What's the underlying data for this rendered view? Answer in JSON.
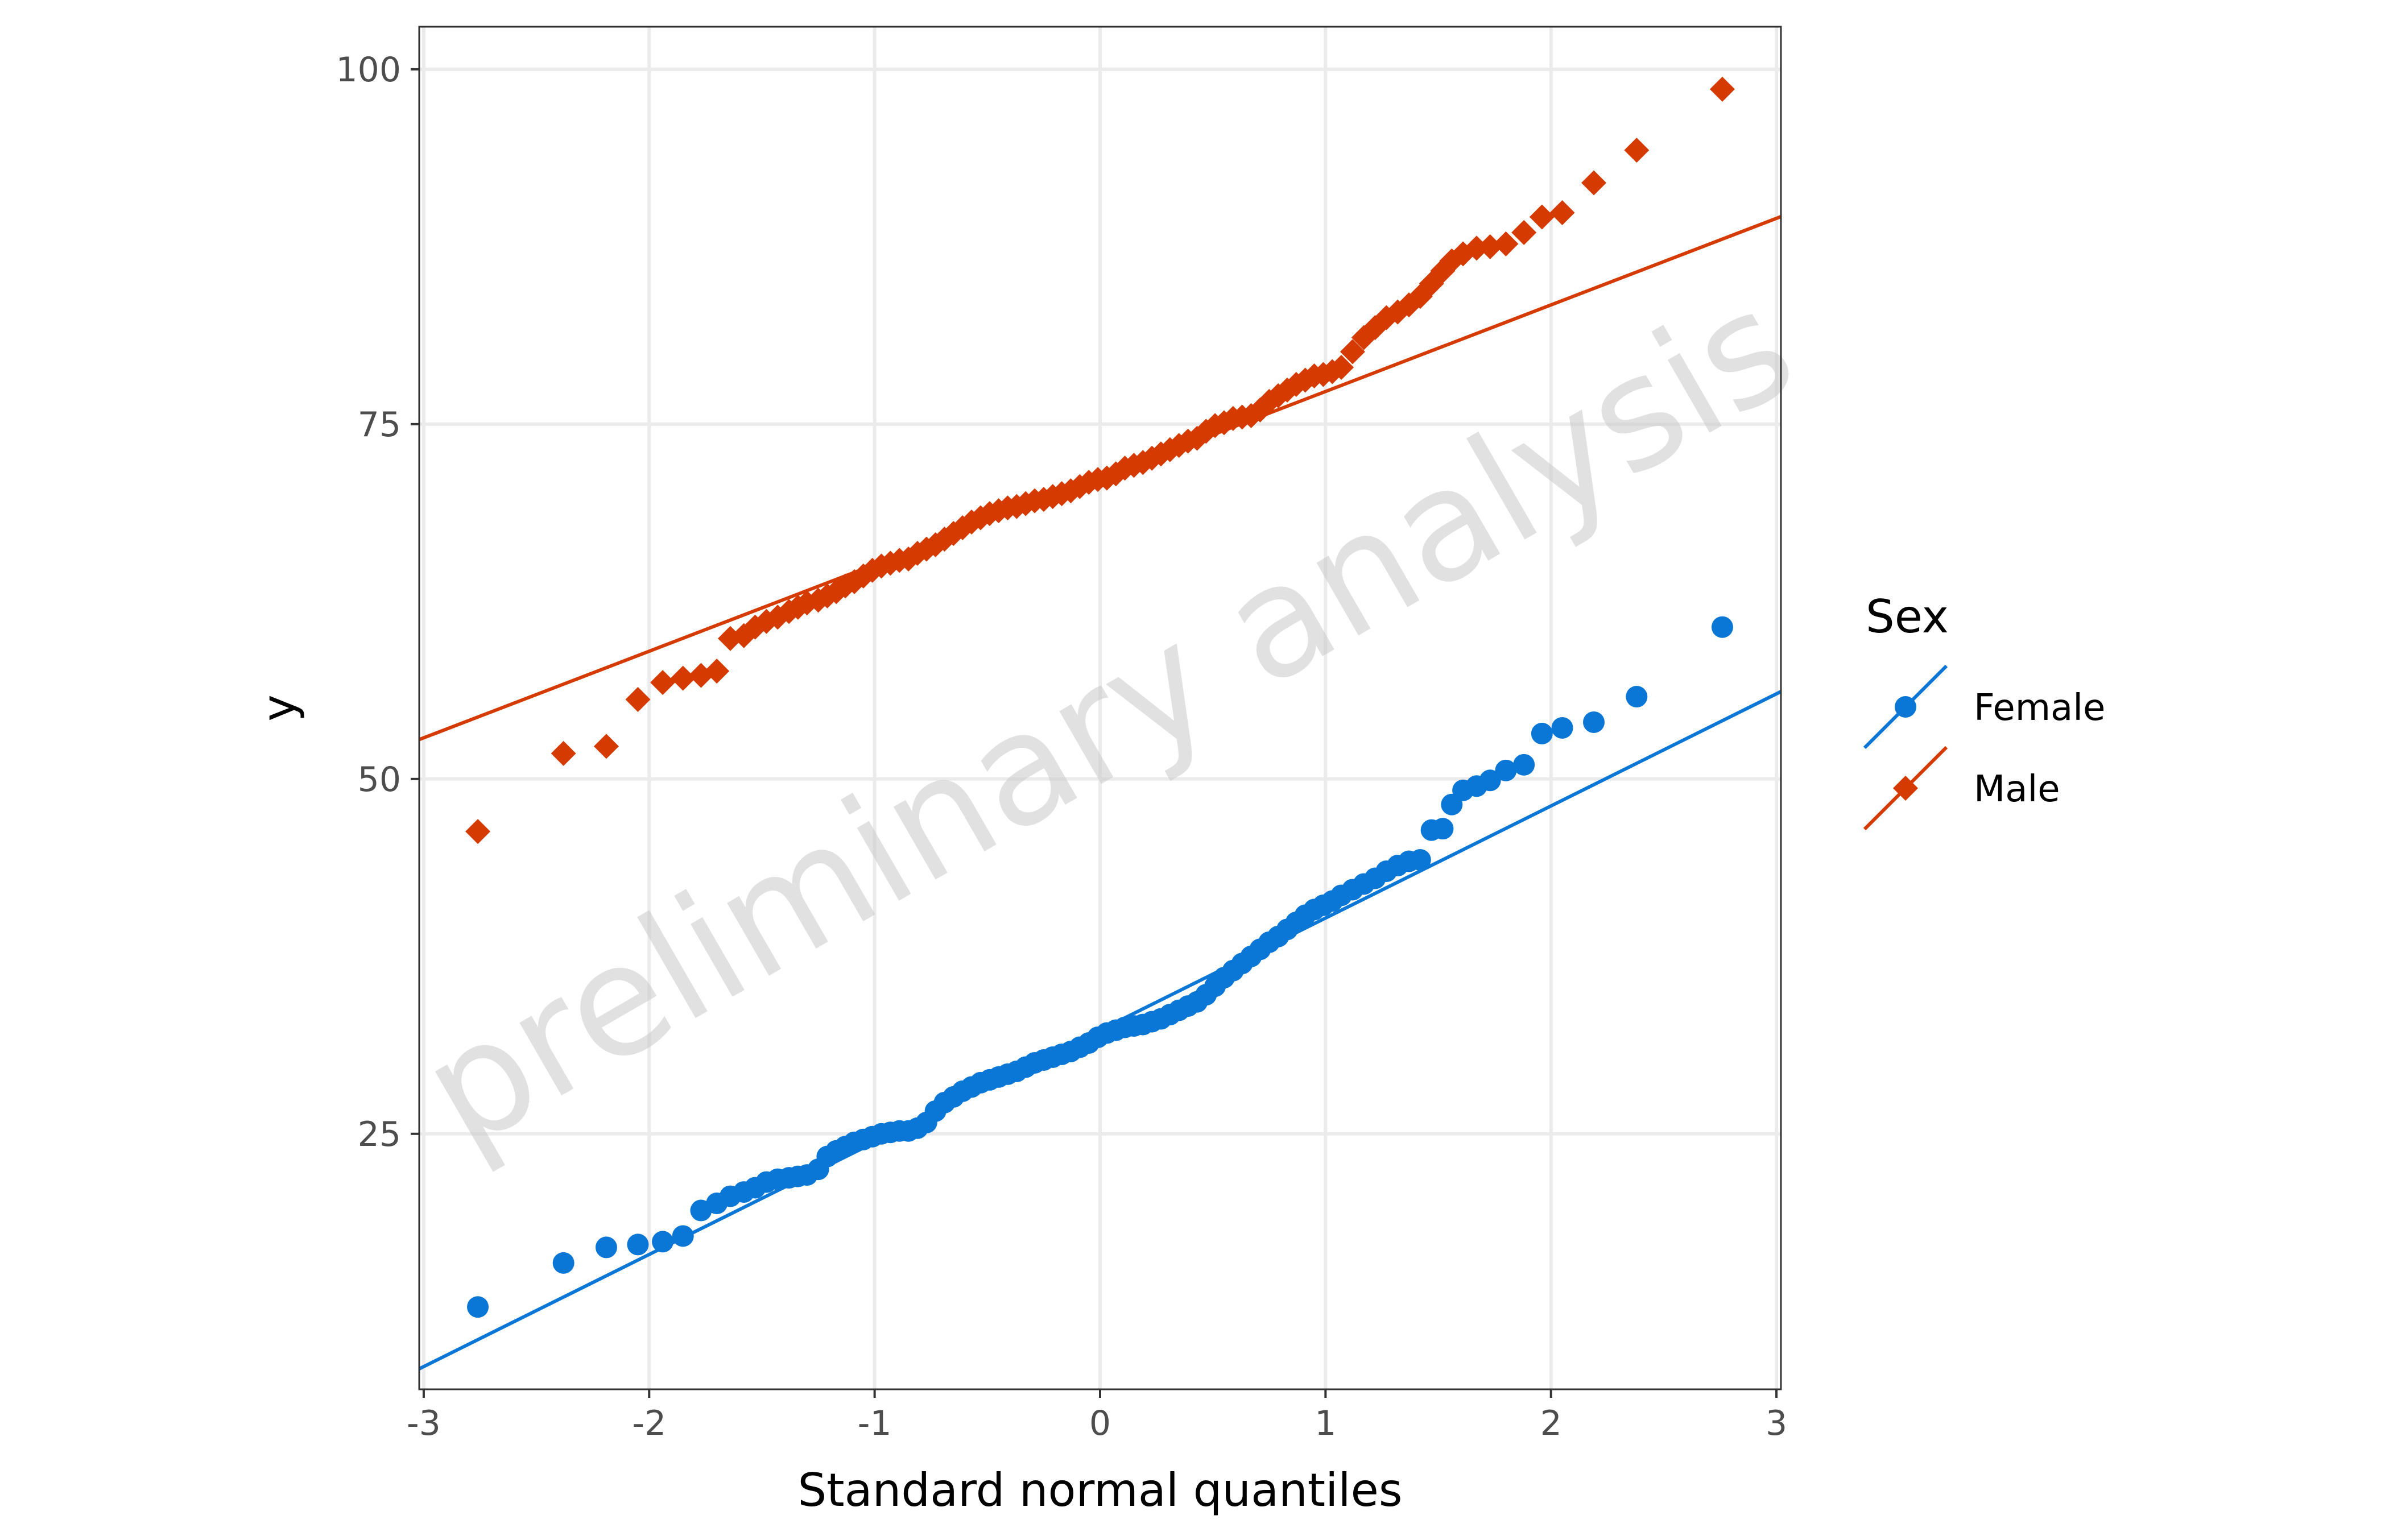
{
  "chart_data": {
    "type": "scatter",
    "subtype": "qq-plot",
    "xlabel": "Standard normal quantiles",
    "ylabel": "y",
    "xlim": [
      -3.02,
      3.02
    ],
    "ylim": [
      7.0,
      103.0
    ],
    "x_ticks": [
      -3,
      -2,
      -1,
      0,
      1,
      2,
      3
    ],
    "x_tick_labels": [
      "-3",
      "-2",
      "-1",
      "0",
      "1",
      "2",
      "3"
    ],
    "y_ticks": [
      25,
      50,
      75,
      100
    ],
    "y_tick_labels": [
      "25",
      "50",
      "75",
      "100"
    ],
    "grid": true,
    "watermark": "preliminary analysis",
    "legend": {
      "title": "Sex",
      "position": "right",
      "entries": [
        "Female",
        "Male"
      ]
    },
    "series": [
      {
        "name": "Female",
        "color": "#0a77d6",
        "marker": "circle",
        "reference_line": {
          "slope": 7.9,
          "intercept": 32.3
        },
        "points": [
          [
            -2.76,
            12.8
          ],
          [
            -2.38,
            15.9
          ],
          [
            -2.19,
            17.0
          ],
          [
            -2.05,
            17.2
          ],
          [
            -1.94,
            17.4
          ],
          [
            -1.85,
            17.8
          ],
          [
            -1.77,
            19.6
          ],
          [
            -1.7,
            20.1
          ],
          [
            -1.64,
            20.6
          ],
          [
            -1.58,
            20.9
          ],
          [
            -1.53,
            21.2
          ],
          [
            -1.48,
            21.6
          ],
          [
            -1.43,
            21.8
          ],
          [
            -1.38,
            21.9
          ],
          [
            -1.34,
            22.0
          ],
          [
            -1.3,
            22.1
          ],
          [
            -1.25,
            22.5
          ],
          [
            -1.21,
            23.4
          ],
          [
            -1.17,
            23.8
          ],
          [
            -1.13,
            24.1
          ],
          [
            -1.09,
            24.4
          ],
          [
            -1.05,
            24.6
          ],
          [
            -1.01,
            24.8
          ],
          [
            -0.97,
            25.0
          ],
          [
            -0.93,
            25.1
          ],
          [
            -0.89,
            25.2
          ],
          [
            -0.85,
            25.2
          ],
          [
            -0.81,
            25.4
          ],
          [
            -0.77,
            25.8
          ],
          [
            -0.73,
            26.6
          ],
          [
            -0.69,
            27.2
          ],
          [
            -0.65,
            27.6
          ],
          [
            -0.61,
            28.0
          ],
          [
            -0.57,
            28.3
          ],
          [
            -0.53,
            28.6
          ],
          [
            -0.49,
            28.8
          ],
          [
            -0.45,
            29.0
          ],
          [
            -0.41,
            29.2
          ],
          [
            -0.37,
            29.4
          ],
          [
            -0.33,
            29.7
          ],
          [
            -0.29,
            30.0
          ],
          [
            -0.25,
            30.2
          ],
          [
            -0.21,
            30.4
          ],
          [
            -0.17,
            30.6
          ],
          [
            -0.13,
            30.8
          ],
          [
            -0.09,
            31.1
          ],
          [
            -0.05,
            31.4
          ],
          [
            -0.01,
            31.8
          ],
          [
            0.03,
            32.1
          ],
          [
            0.07,
            32.3
          ],
          [
            0.11,
            32.5
          ],
          [
            0.15,
            32.6
          ],
          [
            0.19,
            32.7
          ],
          [
            0.23,
            32.9
          ],
          [
            0.27,
            33.1
          ],
          [
            0.31,
            33.4
          ],
          [
            0.35,
            33.7
          ],
          [
            0.39,
            34.0
          ],
          [
            0.43,
            34.3
          ],
          [
            0.47,
            34.8
          ],
          [
            0.51,
            35.4
          ],
          [
            0.55,
            36.0
          ],
          [
            0.59,
            36.5
          ],
          [
            0.63,
            37.0
          ],
          [
            0.67,
            37.5
          ],
          [
            0.71,
            38.0
          ],
          [
            0.75,
            38.5
          ],
          [
            0.79,
            38.9
          ],
          [
            0.83,
            39.4
          ],
          [
            0.87,
            39.9
          ],
          [
            0.91,
            40.4
          ],
          [
            0.95,
            40.8
          ],
          [
            0.99,
            41.1
          ],
          [
            1.03,
            41.4
          ],
          [
            1.07,
            41.8
          ],
          [
            1.12,
            42.2
          ],
          [
            1.17,
            42.6
          ],
          [
            1.22,
            43.0
          ],
          [
            1.27,
            43.5
          ],
          [
            1.32,
            43.9
          ],
          [
            1.37,
            44.2
          ],
          [
            1.42,
            44.3
          ],
          [
            1.47,
            46.4
          ],
          [
            1.52,
            46.5
          ],
          [
            1.56,
            48.2
          ],
          [
            1.61,
            49.2
          ],
          [
            1.67,
            49.5
          ],
          [
            1.73,
            49.9
          ],
          [
            1.8,
            50.6
          ],
          [
            1.88,
            51.0
          ],
          [
            1.96,
            53.2
          ],
          [
            2.05,
            53.6
          ],
          [
            2.19,
            54.0
          ],
          [
            2.38,
            55.8
          ],
          [
            2.76,
            60.7
          ]
        ]
      },
      {
        "name": "Male",
        "color": "#d53b00",
        "marker": "diamond",
        "reference_line": {
          "slope": 6.1,
          "intercept": 71.2
        },
        "points": [
          [
            -2.76,
            46.3
          ],
          [
            -2.38,
            51.8
          ],
          [
            -2.19,
            52.3
          ],
          [
            -2.05,
            55.6
          ],
          [
            -1.94,
            56.8
          ],
          [
            -1.85,
            57.1
          ],
          [
            -1.77,
            57.3
          ],
          [
            -1.7,
            57.6
          ],
          [
            -1.64,
            59.9
          ],
          [
            -1.58,
            60.1
          ],
          [
            -1.53,
            60.7
          ],
          [
            -1.48,
            61.1
          ],
          [
            -1.43,
            61.4
          ],
          [
            -1.38,
            61.8
          ],
          [
            -1.34,
            62.1
          ],
          [
            -1.3,
            62.4
          ],
          [
            -1.25,
            62.6
          ],
          [
            -1.21,
            62.9
          ],
          [
            -1.17,
            63.2
          ],
          [
            -1.13,
            63.6
          ],
          [
            -1.09,
            63.9
          ],
          [
            -1.05,
            64.3
          ],
          [
            -1.01,
            64.7
          ],
          [
            -0.97,
            65.0
          ],
          [
            -0.93,
            65.2
          ],
          [
            -0.89,
            65.4
          ],
          [
            -0.85,
            65.5
          ],
          [
            -0.81,
            65.9
          ],
          [
            -0.77,
            66.2
          ],
          [
            -0.73,
            66.5
          ],
          [
            -0.69,
            66.9
          ],
          [
            -0.65,
            67.3
          ],
          [
            -0.61,
            67.7
          ],
          [
            -0.57,
            68.1
          ],
          [
            -0.53,
            68.4
          ],
          [
            -0.49,
            68.7
          ],
          [
            -0.45,
            68.9
          ],
          [
            -0.41,
            69.1
          ],
          [
            -0.37,
            69.2
          ],
          [
            -0.33,
            69.4
          ],
          [
            -0.29,
            69.6
          ],
          [
            -0.25,
            69.7
          ],
          [
            -0.21,
            69.9
          ],
          [
            -0.17,
            70.1
          ],
          [
            -0.13,
            70.3
          ],
          [
            -0.09,
            70.6
          ],
          [
            -0.05,
            70.9
          ],
          [
            -0.01,
            71.1
          ],
          [
            0.03,
            71.2
          ],
          [
            0.07,
            71.5
          ],
          [
            0.11,
            71.9
          ],
          [
            0.15,
            72.1
          ],
          [
            0.19,
            72.3
          ],
          [
            0.23,
            72.6
          ],
          [
            0.27,
            72.9
          ],
          [
            0.31,
            73.2
          ],
          [
            0.35,
            73.5
          ],
          [
            0.39,
            73.8
          ],
          [
            0.43,
            74.0
          ],
          [
            0.47,
            74.5
          ],
          [
            0.51,
            74.9
          ],
          [
            0.55,
            75.1
          ],
          [
            0.59,
            75.4
          ],
          [
            0.63,
            75.5
          ],
          [
            0.67,
            75.6
          ],
          [
            0.71,
            76.0
          ],
          [
            0.75,
            76.6
          ],
          [
            0.79,
            77.0
          ],
          [
            0.83,
            77.4
          ],
          [
            0.87,
            77.8
          ],
          [
            0.91,
            78.1
          ],
          [
            0.95,
            78.4
          ],
          [
            0.99,
            78.5
          ],
          [
            1.03,
            78.7
          ],
          [
            1.07,
            79.0
          ],
          [
            1.12,
            80.1
          ],
          [
            1.17,
            81.1
          ],
          [
            1.22,
            81.8
          ],
          [
            1.27,
            82.5
          ],
          [
            1.32,
            82.9
          ],
          [
            1.37,
            83.4
          ],
          [
            1.42,
            84.0
          ],
          [
            1.47,
            84.9
          ],
          [
            1.52,
            85.8
          ],
          [
            1.56,
            86.5
          ],
          [
            1.61,
            87.0
          ],
          [
            1.67,
            87.4
          ],
          [
            1.73,
            87.5
          ],
          [
            1.8,
            87.7
          ],
          [
            1.88,
            88.5
          ],
          [
            1.96,
            89.6
          ],
          [
            2.05,
            89.9
          ],
          [
            2.19,
            92.0
          ],
          [
            2.38,
            94.3
          ],
          [
            2.76,
            98.6
          ]
        ]
      }
    ]
  }
}
